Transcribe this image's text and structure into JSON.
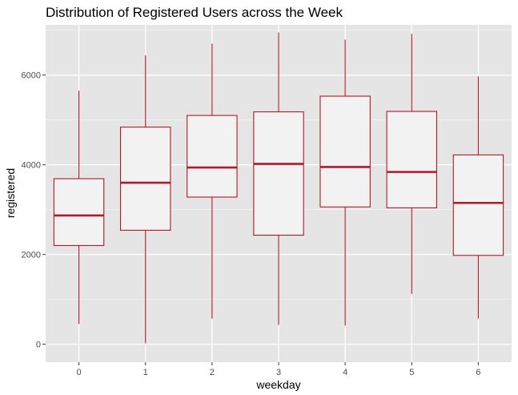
{
  "chart_data": {
    "type": "boxplot",
    "title": "Distribution of Registered Users across the Week",
    "xlabel": "weekday",
    "ylabel": "registered",
    "categories": [
      "0",
      "1",
      "2",
      "3",
      "4",
      "5",
      "6"
    ],
    "ylim": [
      -400,
      7120
    ],
    "yticks": [
      0,
      2000,
      4000,
      6000
    ],
    "grid": true,
    "legend": "none",
    "boxes": [
      {
        "category": "0",
        "min": 451,
        "q1": 2200,
        "median": 2870,
        "q3": 3690,
        "max": 5650
      },
      {
        "category": "1",
        "min": 20,
        "q1": 2540,
        "median": 3600,
        "q3": 4840,
        "max": 6440
      },
      {
        "category": "2",
        "min": 573,
        "q1": 3280,
        "median": 3940,
        "q3": 5100,
        "max": 6700
      },
      {
        "category": "3",
        "min": 432,
        "q1": 2430,
        "median": 4020,
        "q3": 5180,
        "max": 6950
      },
      {
        "category": "4",
        "min": 416,
        "q1": 3060,
        "median": 3950,
        "q3": 5530,
        "max": 6790
      },
      {
        "category": "5",
        "min": 1120,
        "q1": 3040,
        "median": 3840,
        "q3": 5190,
        "max": 6920
      },
      {
        "category": "6",
        "min": 570,
        "q1": 1980,
        "median": 3150,
        "q3": 4220,
        "max": 5970
      }
    ],
    "colors": {
      "panel": "#e5e5e5",
      "grid": "#ffffff",
      "box_fill": "#f2f2f2",
      "box_stroke": "#b2182b",
      "tick_text": "#4d4d4d",
      "tick_mark": "#333333"
    }
  }
}
